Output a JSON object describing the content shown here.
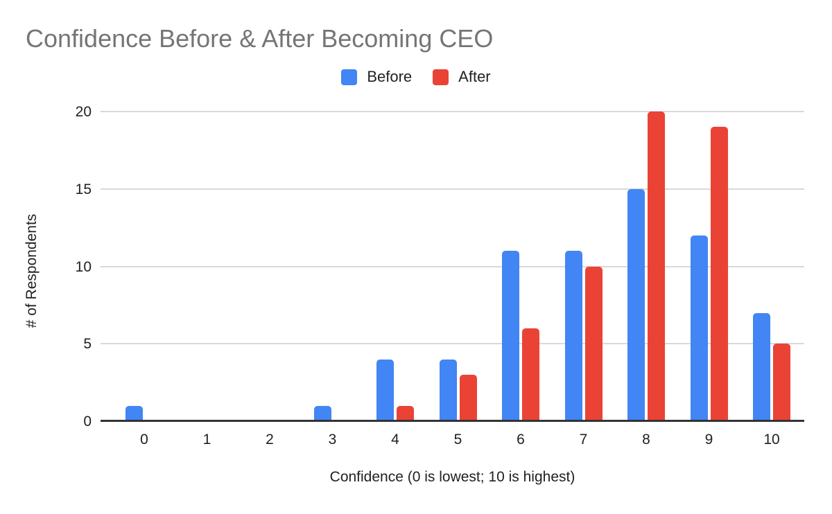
{
  "title": "Confidence Before & After Becoming CEO",
  "colors": {
    "title_text": "#757575",
    "axis_text": "#212121",
    "gridline": "#d9d9d9",
    "axis_line": "#333333",
    "background": "#ffffff",
    "before_series": "#4285f4",
    "after_series": "#ea4335"
  },
  "chart_data": {
    "type": "bar",
    "title": "Confidence Before & After Becoming CEO",
    "xlabel": "Confidence (0 is lowest; 10 is highest)",
    "ylabel": "# of Respondents",
    "categories": [
      "0",
      "1",
      "2",
      "3",
      "4",
      "5",
      "6",
      "7",
      "8",
      "9",
      "10"
    ],
    "series": [
      {
        "name": "Before",
        "color": "#4285f4",
        "values": [
          1,
          0,
          0,
          1,
          4,
          4,
          11,
          11,
          15,
          12,
          7
        ]
      },
      {
        "name": "After",
        "color": "#ea4335",
        "values": [
          0,
          0,
          0,
          0,
          1,
          3,
          6,
          10,
          20,
          19,
          5
        ]
      }
    ],
    "ylim": [
      0,
      20
    ],
    "yticks": [
      0,
      5,
      10,
      15,
      20
    ],
    "grid": true,
    "legend_position": "top"
  }
}
